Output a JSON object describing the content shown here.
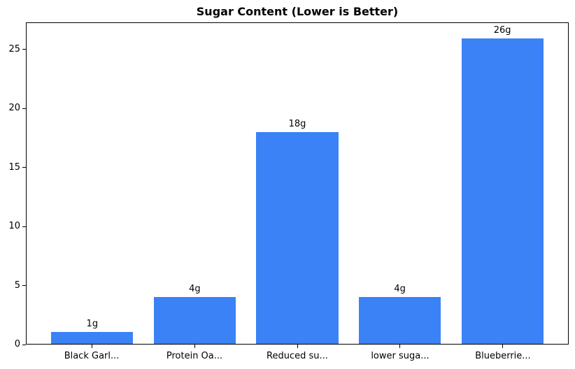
{
  "chart_data": {
    "type": "bar",
    "title": "Sugar Content (Lower is Better)",
    "categories": [
      "Black Garl...",
      "Protein Oa...",
      "Reduced su...",
      "lower suga...",
      "Blueberrie..."
    ],
    "values": [
      1,
      4,
      18,
      4,
      26
    ],
    "bar_labels": [
      "1g",
      "4g",
      "18g",
      "4g",
      "26g"
    ],
    "xlabel": "",
    "ylabel": "",
    "yticks": [
      0,
      5,
      10,
      15,
      20,
      25
    ],
    "ylim": [
      0,
      27.3
    ],
    "xlim": [
      -0.64,
      4.64
    ],
    "bar_width_units": 0.8,
    "bar_color": "#3b82f6",
    "axis_color": "#000000",
    "text_color": "#000000",
    "background_color": "#ffffff",
    "grid": false,
    "legend": "none"
  }
}
